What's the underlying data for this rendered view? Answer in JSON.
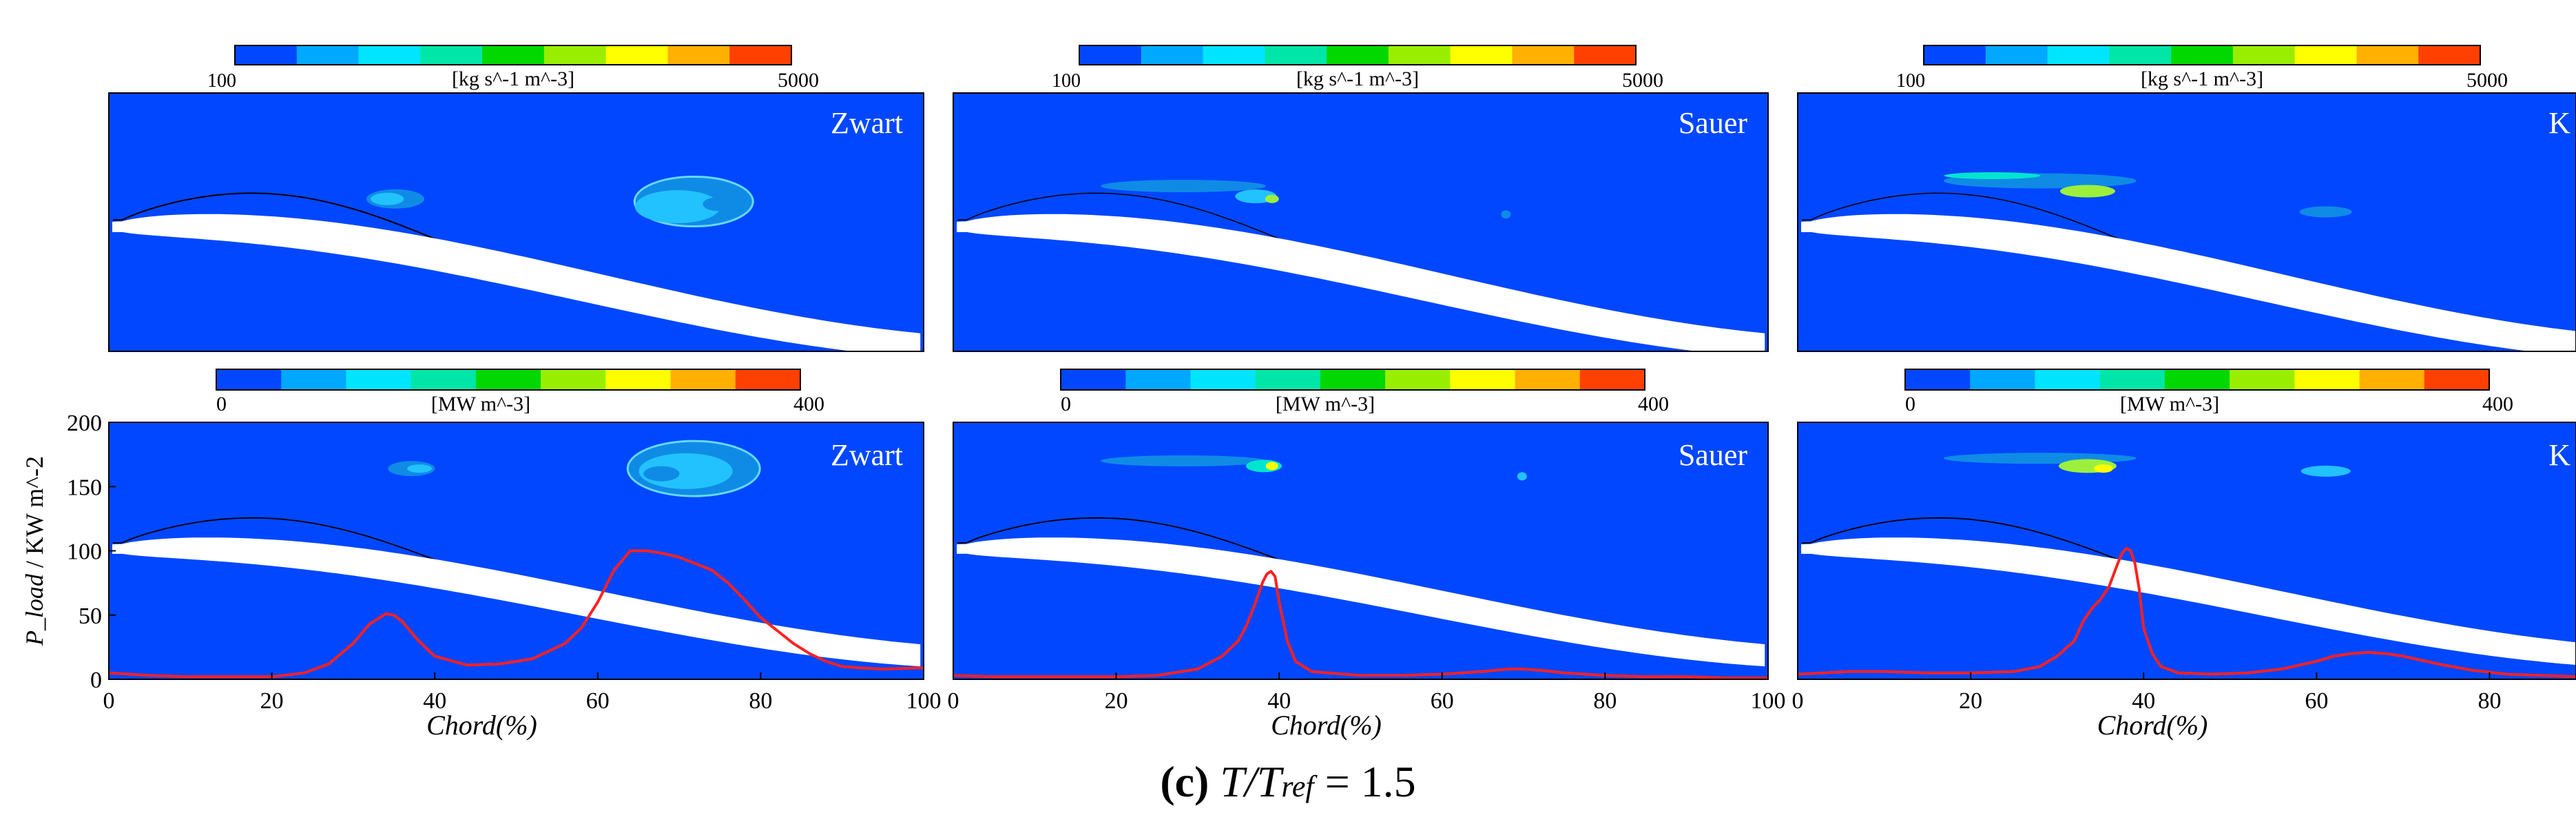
{
  "caption": {
    "label": "(c)",
    "formula_T": "T/T",
    "formula_sub": "ref",
    "formula_rest": " = 1.5"
  },
  "colormaps": {
    "colors": [
      "#0047ff",
      "#00a8ff",
      "#00e5ff",
      "#00e6a8",
      "#00d800",
      "#99ee00",
      "#ffff00",
      "#ffb000",
      "#ff4000"
    ],
    "background": "#0047ff",
    "island_colors": [
      "#0f8be6",
      "#22c2ff",
      "#00e5d0",
      "#9cf03c",
      "#ffff00"
    ]
  },
  "chart_data": [
    {
      "panel": "top-1",
      "model": "Zwart",
      "type": "contour",
      "colorbar": {
        "min": "100",
        "max": "5000",
        "unit": "[kg s^-1 m^-3]"
      }
    },
    {
      "panel": "top-2",
      "model": "Sauer",
      "type": "contour",
      "colorbar": {
        "min": "100",
        "max": "5000",
        "unit": "[kg s^-1 m^-3]"
      }
    },
    {
      "panel": "top-3",
      "model": "K",
      "type": "contour",
      "colorbar": {
        "min": "100",
        "max": "5000",
        "unit": "[kg s^-1 m^-3]"
      }
    },
    {
      "panel": "bottom-1",
      "model": "Zwart",
      "type": "line",
      "colorbar": {
        "min": "0",
        "max": "400",
        "unit": "[MW m^-3]"
      },
      "xlabel": "Chord(%)",
      "ylabel": "P_load / KW m^-2",
      "xlim": [
        0,
        100
      ],
      "ylim": [
        0,
        200
      ],
      "xticks": [
        "0",
        "20",
        "40",
        "60",
        "80",
        "100"
      ],
      "yticks": [
        "0",
        "50",
        "100",
        "150",
        "200"
      ],
      "series": [
        {
          "name": "P_load",
          "color": "#ff2020",
          "x": [
            0,
            5,
            10,
            15,
            20,
            24,
            27,
            30,
            32,
            34,
            35,
            36,
            38,
            40,
            44,
            48,
            52,
            56,
            58,
            60,
            62,
            64,
            66,
            68,
            70,
            72,
            74,
            76,
            78,
            80,
            82,
            84,
            86,
            88,
            90,
            92,
            95,
            100
          ],
          "y": [
            5,
            3,
            2,
            2,
            2,
            5,
            12,
            28,
            43,
            51,
            50,
            45,
            30,
            18,
            11,
            12,
            16,
            28,
            40,
            60,
            85,
            100,
            100,
            98,
            95,
            90,
            85,
            75,
            62,
            48,
            38,
            28,
            20,
            14,
            10,
            9,
            8,
            9
          ]
        }
      ]
    },
    {
      "panel": "bottom-2",
      "model": "Sauer",
      "type": "line",
      "colorbar": {
        "min": "0",
        "max": "400",
        "unit": "[MW m^-3]"
      },
      "xlabel": "Chord(%)",
      "xlim": [
        0,
        100
      ],
      "ylim": [
        0,
        200
      ],
      "xticks": [
        "0",
        "20",
        "40",
        "60",
        "80",
        "100"
      ],
      "series": [
        {
          "name": "P_load",
          "color": "#ff2020",
          "x": [
            0,
            5,
            10,
            15,
            20,
            25,
            30,
            33,
            35,
            36,
            37,
            38,
            38.5,
            39,
            39.5,
            40,
            41,
            42,
            44,
            50,
            55,
            60,
            65,
            68,
            70,
            72,
            75,
            80,
            85,
            90,
            95,
            100
          ],
          "y": [
            3,
            2,
            2,
            2,
            2,
            3,
            8,
            18,
            30,
            42,
            58,
            76,
            82,
            84,
            80,
            60,
            30,
            14,
            6,
            3,
            3,
            4,
            6,
            8,
            8,
            7,
            5,
            3,
            2,
            2,
            1,
            1
          ]
        }
      ]
    },
    {
      "panel": "bottom-3",
      "model": "K",
      "type": "line",
      "colorbar": {
        "min": "0",
        "max": "400",
        "unit": "[MW m^-3]"
      },
      "xlabel": "Chord(%)",
      "xlim": [
        0,
        90
      ],
      "ylim": [
        0,
        200
      ],
      "xticks": [
        "0",
        "20",
        "40",
        "60",
        "80"
      ],
      "series": [
        {
          "name": "P_load",
          "color": "#ff2020",
          "x": [
            0,
            3,
            6,
            10,
            15,
            20,
            25,
            28,
            30,
            32,
            33,
            34,
            35,
            36,
            37,
            37.5,
            38,
            38.5,
            39,
            39.5,
            40,
            41,
            42,
            44,
            48,
            52,
            56,
            60,
            62,
            64,
            66,
            68,
            70,
            74,
            78,
            82,
            86,
            90
          ],
          "y": [
            4,
            5,
            6,
            6,
            5,
            5,
            6,
            10,
            18,
            30,
            45,
            55,
            62,
            72,
            90,
            98,
            102,
            100,
            90,
            70,
            40,
            20,
            10,
            5,
            4,
            5,
            8,
            14,
            18,
            20,
            21,
            20,
            18,
            12,
            7,
            4,
            3,
            2
          ]
        }
      ]
    }
  ]
}
